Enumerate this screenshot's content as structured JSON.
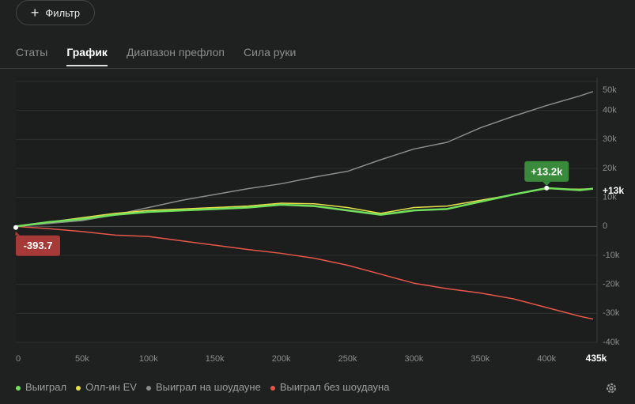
{
  "filter_button": "Фильтр",
  "tabs": [
    "Статы",
    "График",
    "Диапазон префлоп",
    "Сила руки"
  ],
  "chart_data": {
    "type": "line",
    "x": [
      0,
      25000,
      50000,
      75000,
      100000,
      125000,
      150000,
      175000,
      200000,
      225000,
      250000,
      275000,
      300000,
      325000,
      350000,
      375000,
      400000,
      425000,
      435000
    ],
    "series": [
      {
        "name": "Выиграл",
        "color": "#72e05c",
        "values": [
          0,
          1500,
          2500,
          4000,
          5000,
          5500,
          6000,
          6500,
          7500,
          7000,
          5500,
          4000,
          5500,
          6000,
          8500,
          11000,
          13200,
          12500,
          13000
        ]
      },
      {
        "name": "Олл-ин EV",
        "color": "#e8e04a",
        "values": [
          0,
          1500,
          3000,
          4500,
          5500,
          6000,
          6500,
          7000,
          8000,
          7800,
          6500,
          4500,
          6500,
          7000,
          9000,
          11000,
          13000,
          12800,
          13000
        ]
      },
      {
        "name": "Выиграл на шоудауне",
        "color": "#8c8c8c",
        "values": [
          0,
          1000,
          2000,
          4000,
          6500,
          9000,
          11000,
          13000,
          14700,
          17000,
          19000,
          23000,
          26700,
          29000,
          34000,
          38000,
          41700,
          45000,
          46500
        ]
      },
      {
        "name": "Выиграл без шоудауна",
        "color": "#e8564a",
        "values": [
          0,
          -800,
          -1800,
          -3000,
          -3500,
          -5000,
          -6500,
          -8000,
          -9300,
          -11000,
          -13400,
          -16500,
          -19600,
          -21500,
          -23000,
          -25000,
          -28000,
          -31000,
          -32000
        ]
      }
    ],
    "xlim": [
      0,
      435000
    ],
    "ylim": [
      -40000,
      50000
    ],
    "xticks": [
      0,
      {
        "value": 50000,
        "label": "50k"
      },
      {
        "value": 100000,
        "label": "100k"
      },
      {
        "value": 150000,
        "label": "150k"
      },
      {
        "value": 200000,
        "label": "200k"
      },
      {
        "value": 250000,
        "label": "250k"
      },
      {
        "value": 300000,
        "label": "300k"
      },
      {
        "value": 350000,
        "label": "350k"
      },
      {
        "value": 400000,
        "label": "400k"
      },
      {
        "value": 435000,
        "label": "435k"
      }
    ],
    "yticks": [
      {
        "value": 50000,
        "label": "50k"
      },
      {
        "value": 40000,
        "label": "40k"
      },
      {
        "value": 30000,
        "label": "30k"
      },
      {
        "value": 20000,
        "label": "20k"
      },
      {
        "value": 10000,
        "label": "10k"
      },
      0,
      {
        "value": -10000,
        "label": "-10k"
      },
      {
        "value": -20000,
        "label": "-20k"
      },
      {
        "value": -30000,
        "label": "-30k"
      },
      {
        "value": -40000,
        "label": "-40k"
      }
    ],
    "grid": true,
    "annotations": [
      {
        "text": "+13.2k",
        "x": 400000,
        "y": 13200,
        "color": "#3a8a3c"
      },
      {
        "text": "-393.7",
        "x": 0,
        "y": -393.7,
        "color": "#a53a38"
      },
      {
        "text": "+13k",
        "x": 435000,
        "y": 13000
      }
    ]
  }
}
